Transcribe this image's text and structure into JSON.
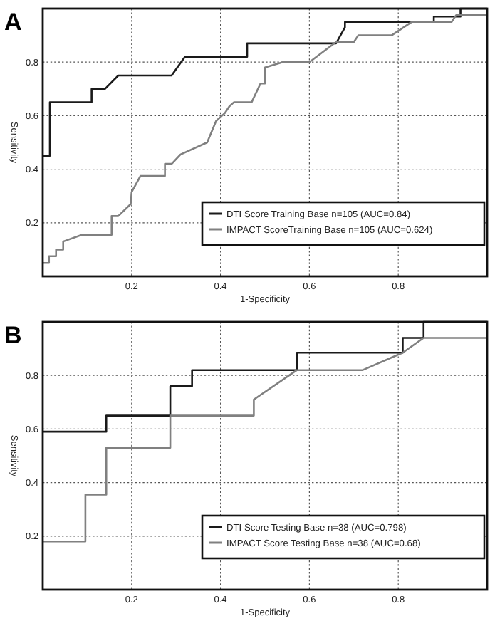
{
  "chart_data": [
    {
      "type": "line",
      "title": "A",
      "xlabel": "1-Specificity",
      "ylabel": "Sensitivity",
      "xlim": [
        0,
        1
      ],
      "ylim": [
        0,
        1
      ],
      "xticks": [
        0.2,
        0.4,
        0.6,
        0.8
      ],
      "yticks": [
        0.2,
        0.4,
        0.6,
        0.8
      ],
      "grid": true,
      "legend": "bottom right",
      "series": [
        {
          "name": "DTI Score Training Base n=105 (AUC=0.84)",
          "color": "#1a1a1a",
          "x": [
            0,
            0.016,
            0.016,
            0.11,
            0.11,
            0.14,
            0.17,
            0.29,
            0.32,
            0.46,
            0.46,
            0.66,
            0.68,
            0.68,
            0.88,
            0.88,
            0.94,
            0.94,
            1
          ],
          "values": [
            0.45,
            0.45,
            0.65,
            0.65,
            0.7,
            0.7,
            0.75,
            0.75,
            0.82,
            0.82,
            0.87,
            0.87,
            0.93,
            0.95,
            0.95,
            0.97,
            0.97,
            1,
            1
          ]
        },
        {
          "name": "IMPACT ScoreTraining Base n=105 (AUC=0.624)",
          "color": "#808080",
          "x": [
            0,
            0.014,
            0.014,
            0.03,
            0.03,
            0.046,
            0.046,
            0.088,
            0.155,
            0.155,
            0.17,
            0.198,
            0.2,
            0.22,
            0.275,
            0.275,
            0.29,
            0.31,
            0.37,
            0.39,
            0.41,
            0.42,
            0.43,
            0.47,
            0.49,
            0.5,
            0.5,
            0.54,
            0.6,
            0.66,
            0.7,
            0.71,
            0.785,
            0.83,
            0.92,
            0.93,
            1
          ],
          "values": [
            0.05,
            0.05,
            0.075,
            0.075,
            0.1,
            0.1,
            0.13,
            0.155,
            0.155,
            0.225,
            0.225,
            0.27,
            0.315,
            0.375,
            0.375,
            0.42,
            0.42,
            0.455,
            0.5,
            0.58,
            0.61,
            0.635,
            0.65,
            0.65,
            0.72,
            0.72,
            0.78,
            0.8,
            0.8,
            0.875,
            0.875,
            0.9,
            0.9,
            0.95,
            0.95,
            0.975,
            0.975
          ]
        }
      ]
    },
    {
      "type": "line",
      "title": "B",
      "xlabel": "1-Specificity",
      "ylabel": "Sensitivity",
      "xlim": [
        0,
        1
      ],
      "ylim": [
        0,
        1
      ],
      "xticks": [
        0.2,
        0.4,
        0.6,
        0.8
      ],
      "yticks": [
        0.2,
        0.4,
        0.6,
        0.8
      ],
      "grid": true,
      "legend": "bottom right",
      "series": [
        {
          "name": "DTI Score Testing Base n=38 (AUC=0.798)",
          "color": "#1a1a1a",
          "x": [
            0,
            0.143,
            0.143,
            0.287,
            0.287,
            0.336,
            0.336,
            0.572,
            0.572,
            0.81,
            0.81,
            0.857,
            0.857,
            1
          ],
          "values": [
            0.59,
            0.59,
            0.65,
            0.65,
            0.76,
            0.76,
            0.82,
            0.82,
            0.885,
            0.885,
            0.94,
            0.94,
            1,
            1
          ]
        },
        {
          "name": "IMPACT Score Testing Base n=38 (AUC=0.68)",
          "color": "#808080",
          "x": [
            0,
            0.096,
            0.096,
            0.143,
            0.143,
            0.287,
            0.287,
            0.475,
            0.475,
            0.572,
            0.72,
            0.81,
            0.857,
            1
          ],
          "values": [
            0.18,
            0.18,
            0.355,
            0.355,
            0.53,
            0.53,
            0.65,
            0.65,
            0.71,
            0.82,
            0.82,
            0.885,
            0.94,
            0.94
          ]
        }
      ]
    }
  ]
}
